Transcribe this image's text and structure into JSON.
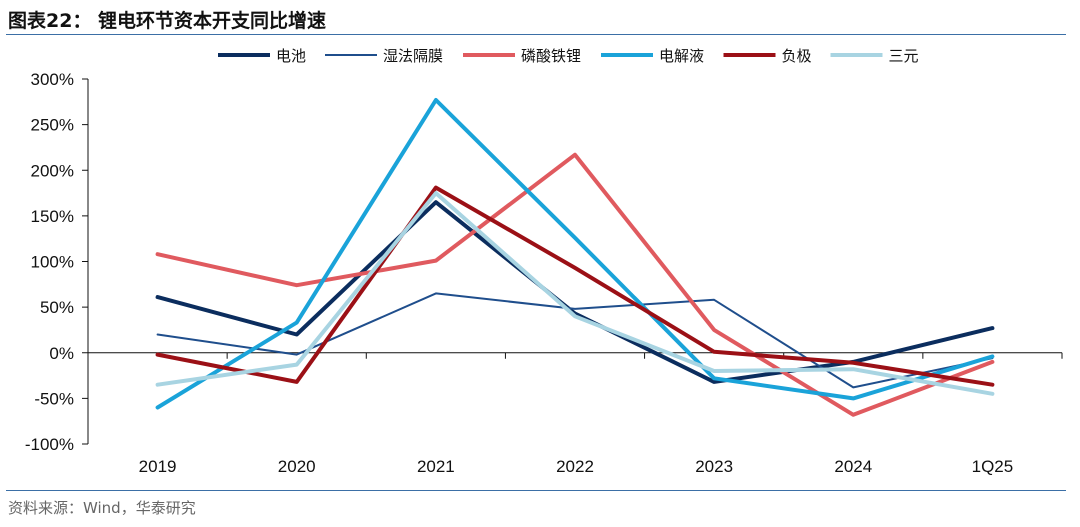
{
  "title": "图表22：  锂电环节资本开支同比增速",
  "source": "资料来源：Wind，华泰研究",
  "chart_data": {
    "type": "line",
    "title": "图表22：  锂电环节资本开支同比增速",
    "xlabel": "",
    "ylabel": "",
    "categories": [
      "2019",
      "2020",
      "2021",
      "2022",
      "2023",
      "2024",
      "1Q25"
    ],
    "ylim": [
      -100,
      300
    ],
    "yticks": [
      -100,
      -50,
      0,
      50,
      100,
      150,
      200,
      250,
      300
    ],
    "ytick_labels": [
      "-100%",
      "-50%",
      "0%",
      "50%",
      "100%",
      "150%",
      "200%",
      "250%",
      "300%"
    ],
    "grid": false,
    "legend_position": "top-right",
    "series": [
      {
        "name": "电池",
        "color": "#0b2d5e",
        "width": "thick",
        "values": [
          61,
          20,
          165,
          43,
          -32,
          -10,
          27
        ]
      },
      {
        "name": "湿法隔膜",
        "color": "#1f4e8c",
        "width": "thin",
        "values": [
          20,
          -2,
          65,
          48,
          58,
          -38,
          -6
        ]
      },
      {
        "name": "磷酸铁锂",
        "color": "#e05a5f",
        "width": "thick",
        "values": [
          108,
          74,
          101,
          217,
          25,
          -68,
          -10
        ]
      },
      {
        "name": "电解液",
        "color": "#1aa3d9",
        "width": "thick",
        "values": [
          -60,
          33,
          277,
          126,
          -28,
          -50,
          -4
        ]
      },
      {
        "name": "负极",
        "color": "#9b1016",
        "width": "thick",
        "values": [
          -2,
          -32,
          181,
          93,
          1,
          -11,
          -35
        ]
      },
      {
        "name": "三元",
        "color": "#a8d4e2",
        "width": "thick",
        "values": [
          -35,
          -13,
          175,
          40,
          -20,
          -18,
          -45
        ]
      }
    ]
  }
}
